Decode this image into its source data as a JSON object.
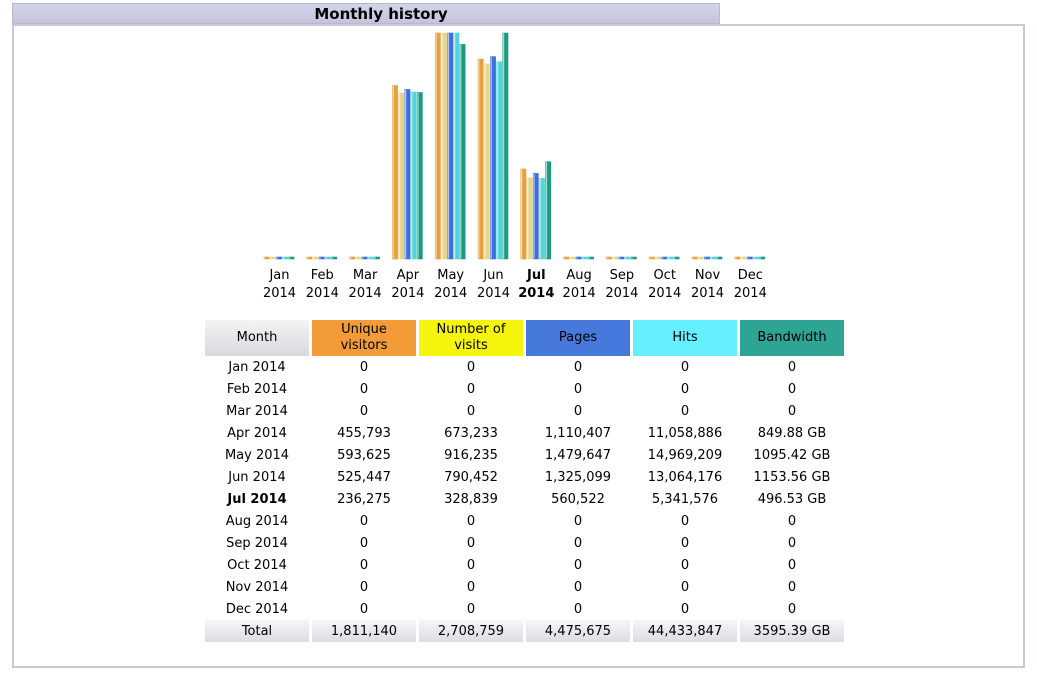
{
  "title": "Monthly history",
  "chart_data": {
    "type": "bar",
    "categories": [
      {
        "month": "Jan",
        "year": "2014"
      },
      {
        "month": "Feb",
        "year": "2014"
      },
      {
        "month": "Mar",
        "year": "2014"
      },
      {
        "month": "Apr",
        "year": "2014"
      },
      {
        "month": "May",
        "year": "2014"
      },
      {
        "month": "Jun",
        "year": "2014"
      },
      {
        "month": "Jul",
        "year": "2014"
      },
      {
        "month": "Aug",
        "year": "2014"
      },
      {
        "month": "Sep",
        "year": "2014"
      },
      {
        "month": "Oct",
        "year": "2014"
      },
      {
        "month": "Nov",
        "year": "2014"
      },
      {
        "month": "Dec",
        "year": "2014"
      }
    ],
    "current_month_index": 6,
    "series": [
      {
        "name": "Unique visitors",
        "color": "#e8a03c",
        "values": [
          0,
          0,
          0,
          455793,
          593625,
          525447,
          236275,
          0,
          0,
          0,
          0,
          0
        ]
      },
      {
        "name": "Number of visits",
        "color": "#e6d68a",
        "values": [
          0,
          0,
          0,
          673233,
          916235,
          790452,
          328839,
          0,
          0,
          0,
          0,
          0
        ]
      },
      {
        "name": "Pages",
        "color": "#3f6fd8",
        "values": [
          0,
          0,
          0,
          1110407,
          1479647,
          1325099,
          560522,
          0,
          0,
          0,
          0,
          0
        ]
      },
      {
        "name": "Hits",
        "color": "#4fd6dc",
        "values": [
          0,
          0,
          0,
          11058886,
          14969209,
          13064176,
          5341576,
          0,
          0,
          0,
          0,
          0
        ]
      },
      {
        "name": "Bandwidth",
        "color": "#1c9a80",
        "values": [
          0,
          0,
          0,
          849.88,
          1095.42,
          1153.56,
          496.53,
          0,
          0,
          0,
          0,
          0
        ]
      }
    ]
  },
  "table": {
    "headers": {
      "month": "Month",
      "unique_visitors": [
        "Unique",
        "visitors"
      ],
      "visits": [
        "Number of",
        "visits"
      ],
      "pages": "Pages",
      "hits": "Hits",
      "bandwidth": "Bandwidth"
    },
    "rows": [
      {
        "month": "Jan 2014",
        "u": "0",
        "v": "0",
        "p": "0",
        "h": "0",
        "b": "0"
      },
      {
        "month": "Feb 2014",
        "u": "0",
        "v": "0",
        "p": "0",
        "h": "0",
        "b": "0"
      },
      {
        "month": "Mar 2014",
        "u": "0",
        "v": "0",
        "p": "0",
        "h": "0",
        "b": "0"
      },
      {
        "month": "Apr 2014",
        "u": "455,793",
        "v": "673,233",
        "p": "1,110,407",
        "h": "11,058,886",
        "b": "849.88 GB"
      },
      {
        "month": "May 2014",
        "u": "593,625",
        "v": "916,235",
        "p": "1,479,647",
        "h": "14,969,209",
        "b": "1095.42 GB"
      },
      {
        "month": "Jun 2014",
        "u": "525,447",
        "v": "790,452",
        "p": "1,325,099",
        "h": "13,064,176",
        "b": "1153.56 GB"
      },
      {
        "month": "Jul 2014",
        "u": "236,275",
        "v": "328,839",
        "p": "560,522",
        "h": "5,341,576",
        "b": "496.53 GB"
      },
      {
        "month": "Aug 2014",
        "u": "0",
        "v": "0",
        "p": "0",
        "h": "0",
        "b": "0"
      },
      {
        "month": "Sep 2014",
        "u": "0",
        "v": "0",
        "p": "0",
        "h": "0",
        "b": "0"
      },
      {
        "month": "Oct 2014",
        "u": "0",
        "v": "0",
        "p": "0",
        "h": "0",
        "b": "0"
      },
      {
        "month": "Nov 2014",
        "u": "0",
        "v": "0",
        "p": "0",
        "h": "0",
        "b": "0"
      },
      {
        "month": "Dec 2014",
        "u": "0",
        "v": "0",
        "p": "0",
        "h": "0",
        "b": "0"
      }
    ],
    "current_row_index": 6,
    "total": {
      "label": "Total",
      "u": "1,811,140",
      "v": "2,708,759",
      "p": "4,475,675",
      "h": "44,433,847",
      "b": "3595.39 GB"
    }
  }
}
